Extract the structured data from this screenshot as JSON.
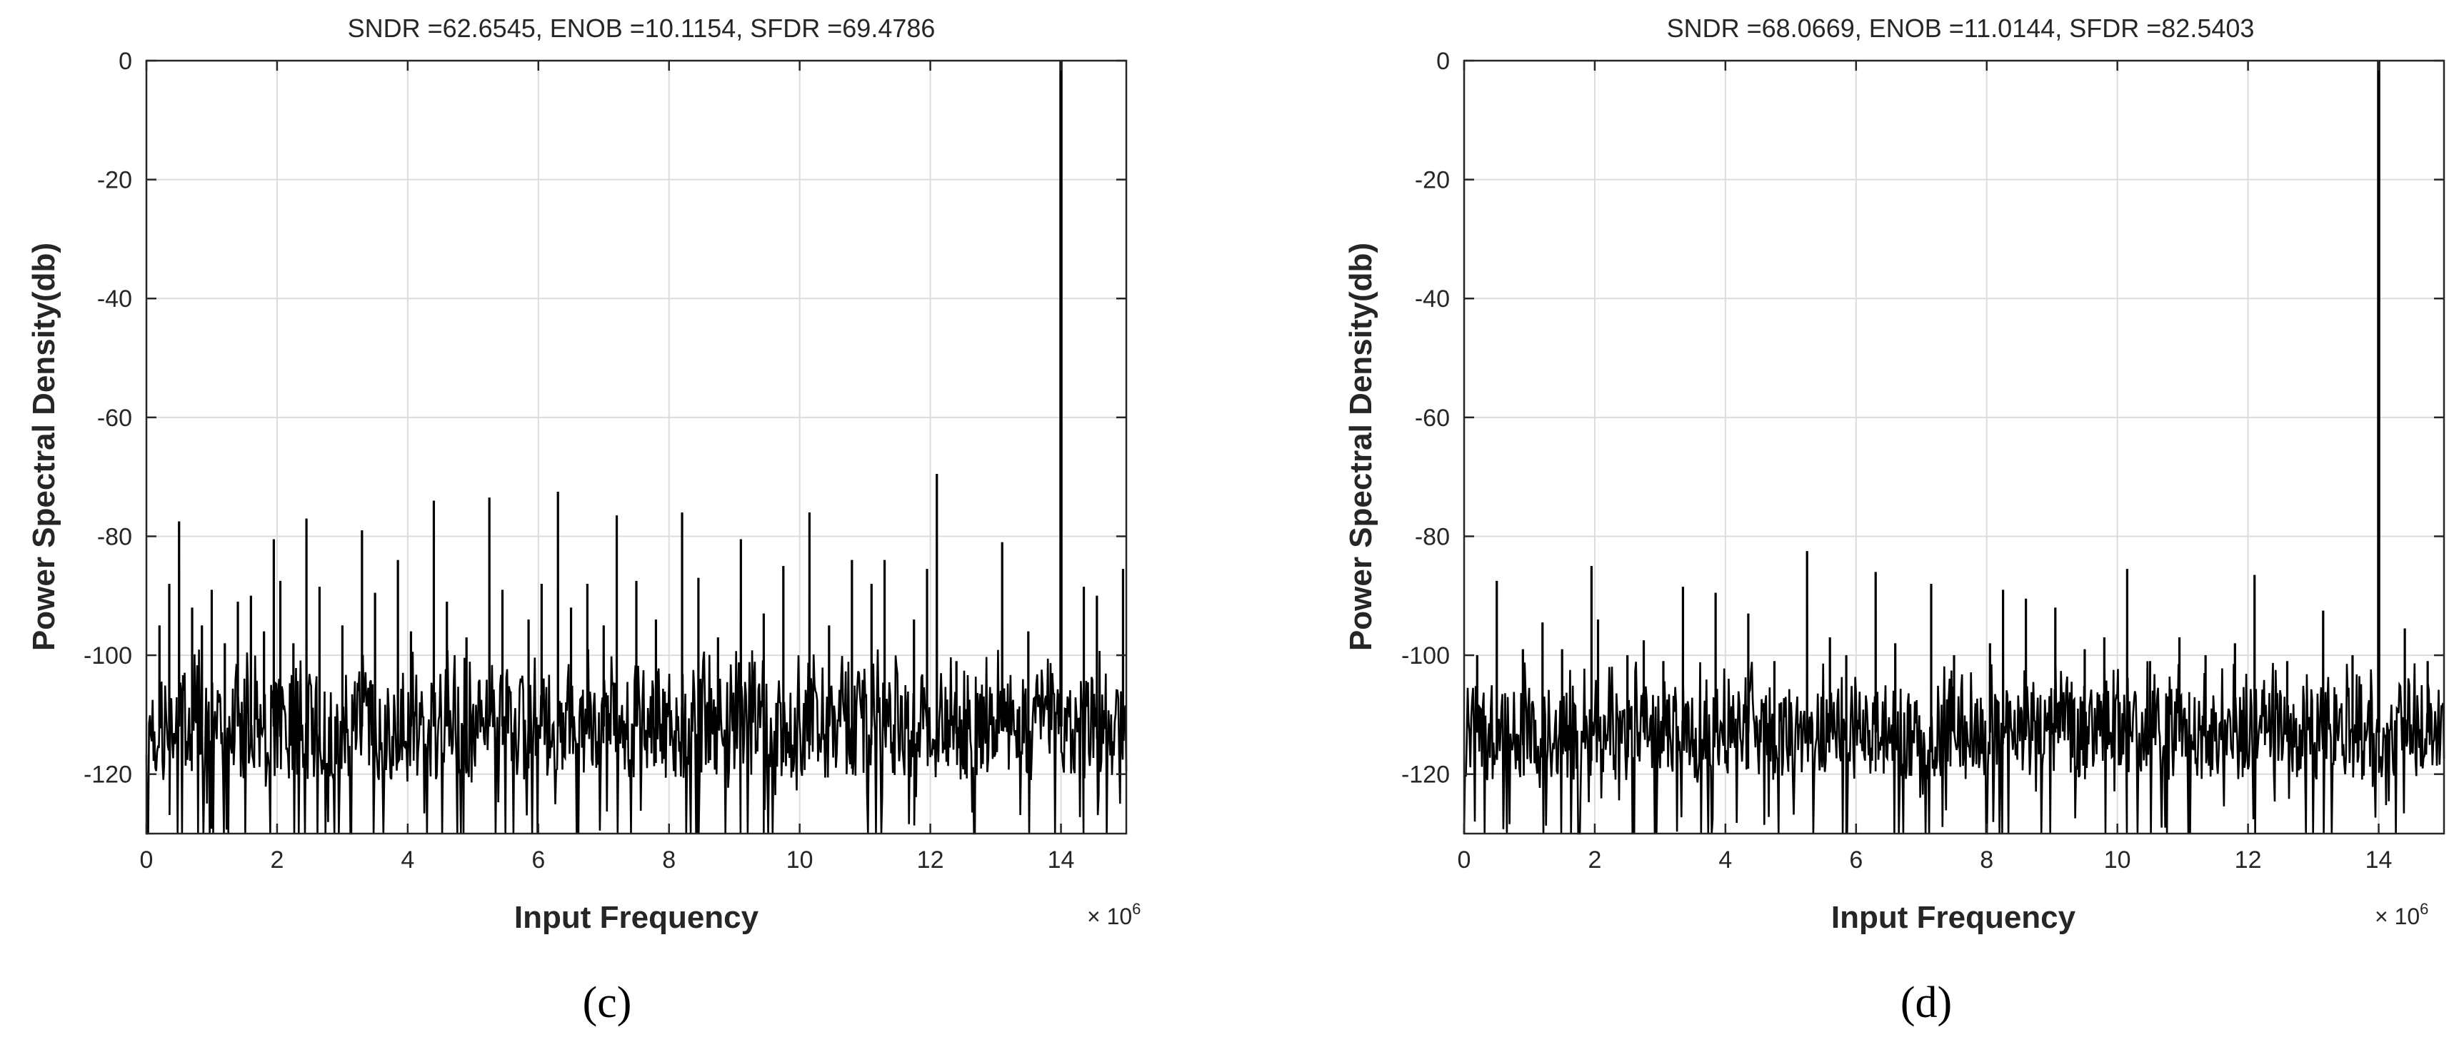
{
  "chart_data": [
    {
      "type": "line",
      "caption": "(c)",
      "title": "SNDR =62.6545, ENOB =10.1154, SFDR =69.4786",
      "xlabel": "Input Frequency",
      "ylabel": "Power Spectral Density(db)",
      "x_exponent_base": "× 10",
      "x_exponent_power": "6",
      "xlim": [
        0,
        15
      ],
      "ylim": [
        -130,
        0
      ],
      "xticks": [
        0,
        2,
        4,
        6,
        8,
        10,
        12,
        14
      ],
      "yticks": [
        0,
        -20,
        -40,
        -60,
        -80,
        -100,
        -120
      ],
      "grid": true,
      "line_color": "#000000",
      "noise_floor_db": -112,
      "noise_spread_db": 9,
      "noise_seed": 7,
      "series": [
        {
          "values_note": "",
          "spurs": [
            {
              "x": 0.2,
              "y": -95
            },
            {
              "x": 0.35,
              "y": -88
            },
            {
              "x": 0.5,
              "y": -77.5
            },
            {
              "x": 0.7,
              "y": -92
            },
            {
              "x": 0.85,
              "y": -95
            },
            {
              "x": 1.0,
              "y": -89
            },
            {
              "x": 1.2,
              "y": -98
            },
            {
              "x": 1.4,
              "y": -91
            },
            {
              "x": 1.6,
              "y": -90
            },
            {
              "x": 1.8,
              "y": -96
            },
            {
              "x": 1.95,
              "y": -80.5
            },
            {
              "x": 2.05,
              "y": -87.5
            },
            {
              "x": 2.25,
              "y": -98
            },
            {
              "x": 2.45,
              "y": -77
            },
            {
              "x": 2.65,
              "y": -88.5
            },
            {
              "x": 3.0,
              "y": -95
            },
            {
              "x": 3.3,
              "y": -79
            },
            {
              "x": 3.5,
              "y": -89.5
            },
            {
              "x": 3.85,
              "y": -84
            },
            {
              "x": 4.05,
              "y": -96
            },
            {
              "x": 4.4,
              "y": -74
            },
            {
              "x": 4.6,
              "y": -91
            },
            {
              "x": 4.9,
              "y": -97
            },
            {
              "x": 5.25,
              "y": -73.5
            },
            {
              "x": 5.45,
              "y": -89
            },
            {
              "x": 5.85,
              "y": -94
            },
            {
              "x": 6.05,
              "y": -88
            },
            {
              "x": 6.3,
              "y": -72.5
            },
            {
              "x": 6.5,
              "y": -92
            },
            {
              "x": 6.75,
              "y": -88
            },
            {
              "x": 7.0,
              "y": -95
            },
            {
              "x": 7.2,
              "y": -76.5
            },
            {
              "x": 7.5,
              "y": -87.5
            },
            {
              "x": 7.8,
              "y": -94
            },
            {
              "x": 8.2,
              "y": -76
            },
            {
              "x": 8.45,
              "y": -87
            },
            {
              "x": 8.75,
              "y": -97
            },
            {
              "x": 9.1,
              "y": -80.5
            },
            {
              "x": 9.45,
              "y": -93
            },
            {
              "x": 9.75,
              "y": -85
            },
            {
              "x": 10.15,
              "y": -76
            },
            {
              "x": 10.45,
              "y": -95
            },
            {
              "x": 10.8,
              "y": -84
            },
            {
              "x": 11.1,
              "y": -88
            },
            {
              "x": 11.3,
              "y": -84
            },
            {
              "x": 11.75,
              "y": -94
            },
            {
              "x": 11.95,
              "y": -85.5
            },
            {
              "x": 12.1,
              "y": -69.5
            },
            {
              "x": 12.4,
              "y": -101
            },
            {
              "x": 13.1,
              "y": -81
            },
            {
              "x": 13.5,
              "y": -96
            },
            {
              "x": 14.0,
              "y": 0
            },
            {
              "x": 14.35,
              "y": -88.5
            },
            {
              "x": 14.55,
              "y": -90
            },
            {
              "x": 14.95,
              "y": -85.5
            }
          ]
        }
      ]
    },
    {
      "type": "line",
      "caption": "(d)",
      "title": "SNDR =68.0669, ENOB =11.0144, SFDR =82.5403",
      "xlabel": "Input Frequency",
      "ylabel": "Power Spectral Density(db)",
      "x_exponent_base": "× 10",
      "x_exponent_power": "6",
      "xlim": [
        0,
        15
      ],
      "ylim": [
        -130,
        0
      ],
      "xticks": [
        0,
        2,
        4,
        6,
        8,
        10,
        12,
        14
      ],
      "yticks": [
        0,
        -20,
        -40,
        -60,
        -80,
        -100,
        -120
      ],
      "grid": true,
      "line_color": "#000000",
      "noise_floor_db": -113,
      "noise_spread_db": 8,
      "noise_seed": 19,
      "series": [
        {
          "values_note": "",
          "spurs": [
            {
              "x": 0.2,
              "y": -100
            },
            {
              "x": 0.5,
              "y": -87.5
            },
            {
              "x": 0.9,
              "y": -99
            },
            {
              "x": 1.2,
              "y": -94.5
            },
            {
              "x": 1.5,
              "y": -99
            },
            {
              "x": 1.95,
              "y": -85
            },
            {
              "x": 2.05,
              "y": -94
            },
            {
              "x": 2.5,
              "y": -100
            },
            {
              "x": 2.75,
              "y": -97.5
            },
            {
              "x": 3.05,
              "y": -101
            },
            {
              "x": 3.35,
              "y": -88.5
            },
            {
              "x": 3.85,
              "y": -89.5
            },
            {
              "x": 4.35,
              "y": -93
            },
            {
              "x": 4.75,
              "y": -101
            },
            {
              "x": 5.25,
              "y": -82.5
            },
            {
              "x": 5.6,
              "y": -97
            },
            {
              "x": 5.85,
              "y": -100
            },
            {
              "x": 6.3,
              "y": -86
            },
            {
              "x": 6.6,
              "y": -98
            },
            {
              "x": 7.15,
              "y": -88
            },
            {
              "x": 7.5,
              "y": -100
            },
            {
              "x": 8.05,
              "y": -98
            },
            {
              "x": 8.25,
              "y": -89
            },
            {
              "x": 8.6,
              "y": -90.5
            },
            {
              "x": 9.05,
              "y": -92
            },
            {
              "x": 9.5,
              "y": -99
            },
            {
              "x": 9.8,
              "y": -97
            },
            {
              "x": 10.15,
              "y": -85.5
            },
            {
              "x": 10.5,
              "y": -101
            },
            {
              "x": 10.95,
              "y": -97
            },
            {
              "x": 11.35,
              "y": -100
            },
            {
              "x": 11.8,
              "y": -98
            },
            {
              "x": 12.1,
              "y": -86.5
            },
            {
              "x": 12.6,
              "y": -101
            },
            {
              "x": 13.15,
              "y": -92.5
            },
            {
              "x": 13.6,
              "y": -100
            },
            {
              "x": 14.0,
              "y": 0
            },
            {
              "x": 14.4,
              "y": -95.5
            },
            {
              "x": 14.75,
              "y": -101
            }
          ]
        }
      ]
    }
  ]
}
